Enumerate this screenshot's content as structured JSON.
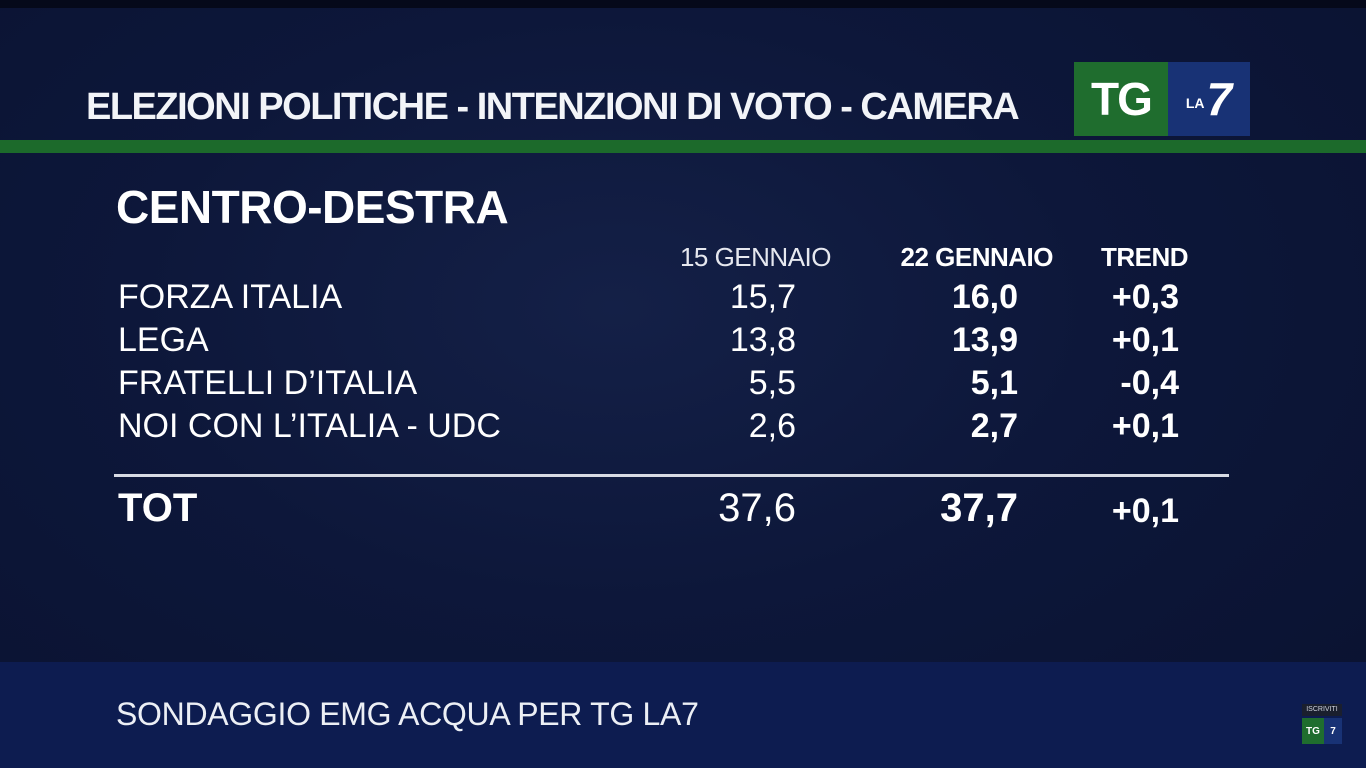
{
  "header": {
    "title": "ELEZIONI POLITICHE - INTENZIONI DI VOTO - CAMERA",
    "logo_tg": "TG",
    "logo_la": "LA",
    "logo_seven": "7"
  },
  "section_title": "CENTRO-DESTRA",
  "columns": {
    "prev": "15 GENNAIO",
    "curr": "22 GENNAIO",
    "trend": "TREND"
  },
  "chart_data": {
    "type": "table",
    "title": "CENTRO-DESTRA",
    "columns": [
      "15 GENNAIO",
      "22 GENNAIO",
      "TREND"
    ],
    "rows": [
      {
        "name": "FORZA ITALIA",
        "prev": "15,7",
        "curr": "16,0",
        "trend": "+0,3"
      },
      {
        "name": "LEGA",
        "prev": "13,8",
        "curr": "13,9",
        "trend": "+0,1"
      },
      {
        "name": "FRATELLI D’ITALIA",
        "prev": "5,5",
        "curr": "5,1",
        "trend": "-0,4"
      },
      {
        "name": "NOI CON L’ITALIA - UDC",
        "prev": "2,6",
        "curr": "2,7",
        "trend": "+0,1"
      }
    ],
    "total": {
      "name": "TOT",
      "prev": "37,6",
      "curr": "37,7",
      "trend": "+0,1"
    }
  },
  "footer": {
    "source": "SONDAGGIO EMG ACQUA PER TG LA7"
  },
  "badge": {
    "label": "ISCRIVITI",
    "tg": "TG",
    "seven": "7"
  },
  "colors": {
    "background": "#0d173a",
    "green_rule": "#1c6a2b",
    "logo_green": "#1f6d2e",
    "logo_blue": "#183275",
    "footer_band": "#0d1c50"
  }
}
